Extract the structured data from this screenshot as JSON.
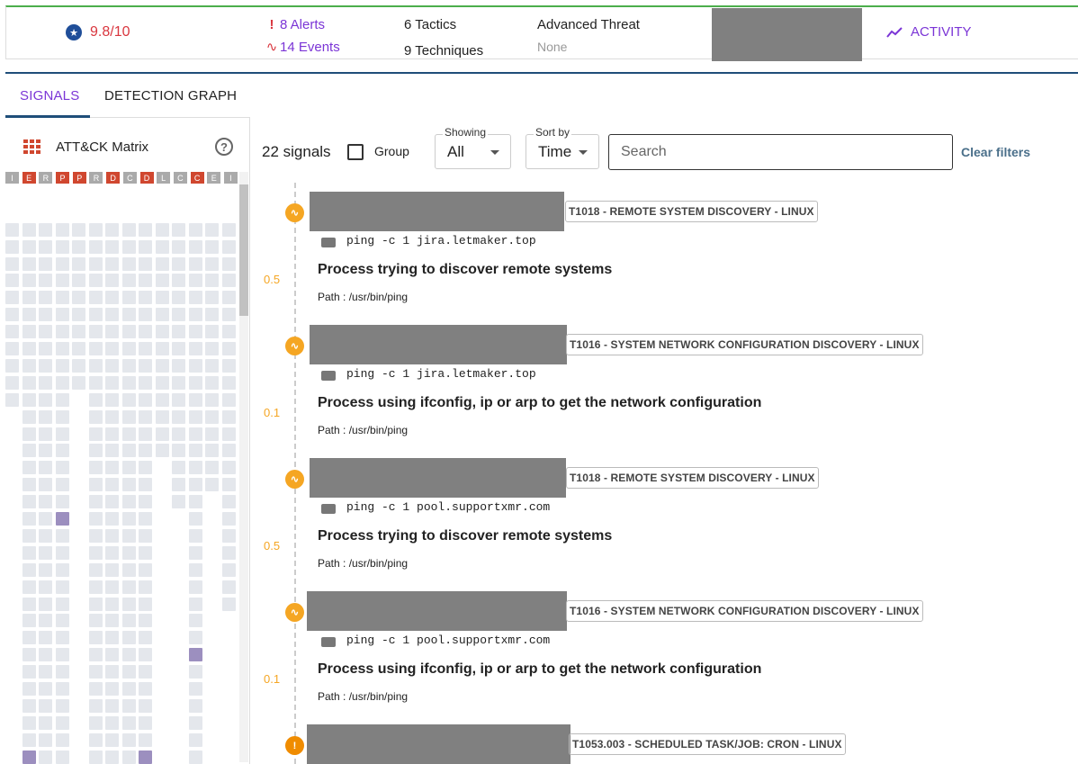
{
  "header": {
    "score": "9.8/10",
    "alerts": "8 Alerts",
    "events": "14 Events",
    "tactics_count": "6",
    "tactics_label": "Tactics",
    "techniques_count": "9",
    "techniques_label": "Techniques",
    "threat_title": "Advanced Threat",
    "threat_sub": "None",
    "activity": "ACTIVITY"
  },
  "tabs": {
    "signals": "SIGNALS",
    "graph": "DETECTION GRAPH"
  },
  "matrix": {
    "title": "ATT&CK Matrix",
    "help": "?",
    "headers": [
      "I",
      "E",
      "R",
      "P",
      "P",
      "R",
      "D",
      "C",
      "D",
      "L",
      "C",
      "C",
      "E",
      "I"
    ],
    "header_colors": [
      "#aaa",
      "#d0472f",
      "#aaa",
      "#d0472f",
      "#d0472f",
      "#aaa",
      "#d0472f",
      "#aaa",
      "#d0472f",
      "#aaa",
      "#aaa",
      "#d0472f",
      "#aaa",
      "#aaa"
    ]
  },
  "toolbar": {
    "count": "22 signals",
    "group": "Group",
    "showing_label": "Showing",
    "showing_value": "All",
    "sort_label": "Sort by",
    "sort_value": "Time",
    "search_placeholder": "Search",
    "clear": "Clear filters"
  },
  "signals": [
    {
      "score": "0.5",
      "tag": "T1018 - REMOTE SYSTEM DISCOVERY - LINUX",
      "cmd": "ping -c 1 jira.letmaker.top",
      "title": "Process trying to discover remote systems",
      "path": "Path : /usr/bin/ping"
    },
    {
      "score": "0.1",
      "tag": "T1016 - SYSTEM NETWORK CONFIGURATION DISCOVERY - LINUX",
      "cmd": "ping -c 1 jira.letmaker.top",
      "title": "Process using ifconfig, ip or arp to get the network configuration",
      "path": "Path : /usr/bin/ping"
    },
    {
      "score": "0.5",
      "tag": "T1018 - REMOTE SYSTEM DISCOVERY - LINUX",
      "cmd": "ping -c 1 pool.supportxmr.com",
      "title": "Process trying to discover remote systems",
      "path": "Path : /usr/bin/ping"
    },
    {
      "score": "0.1",
      "tag": "T1016 - SYSTEM NETWORK CONFIGURATION DISCOVERY - LINUX",
      "cmd": "ping -c 1 pool.supportxmr.com",
      "title": "Process using ifconfig, ip or arp to get the network configuration",
      "path": "Path : /usr/bin/ping"
    },
    {
      "tag": "T1053.003 - SCHEDULED TASK/JOB: CRON - LINUX"
    }
  ]
}
